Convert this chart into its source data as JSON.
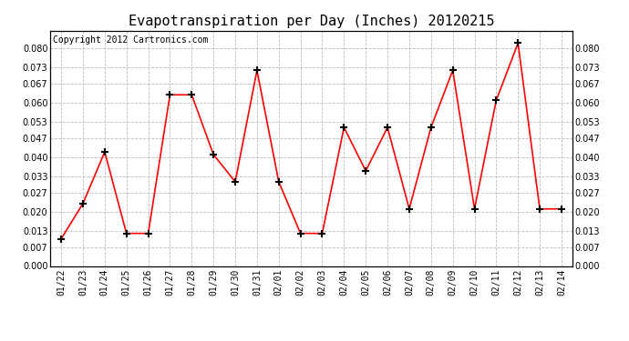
{
  "title": "Evapotranspiration per Day (Inches) 20120215",
  "copyright_text": "Copyright 2012 Cartronics.com",
  "x_labels": [
    "01/22",
    "01/23",
    "01/24",
    "01/25",
    "01/26",
    "01/27",
    "01/28",
    "01/29",
    "01/30",
    "01/31",
    "02/01",
    "02/02",
    "02/03",
    "02/04",
    "02/05",
    "02/06",
    "02/07",
    "02/08",
    "02/09",
    "02/10",
    "02/11",
    "02/12",
    "02/13",
    "02/14"
  ],
  "y_values": [
    0.01,
    0.023,
    0.042,
    0.012,
    0.012,
    0.063,
    0.063,
    0.041,
    0.031,
    0.072,
    0.031,
    0.012,
    0.012,
    0.051,
    0.035,
    0.051,
    0.021,
    0.051,
    0.072,
    0.021,
    0.061,
    0.082,
    0.021,
    0.021
  ],
  "line_color": "#ff0000",
  "marker": "+",
  "marker_size": 6,
  "marker_color": "#000000",
  "ylim_min": 0.0,
  "ylim_max": 0.0866,
  "yticks": [
    0.0,
    0.007,
    0.013,
    0.02,
    0.027,
    0.033,
    0.04,
    0.047,
    0.053,
    0.06,
    0.067,
    0.073,
    0.08
  ],
  "background_color": "#ffffff",
  "plot_bg_color": "#ffffff",
  "grid_color": "#bbbbbb",
  "title_fontsize": 11,
  "copyright_fontsize": 7,
  "tick_fontsize": 7,
  "line_width": 1.2
}
